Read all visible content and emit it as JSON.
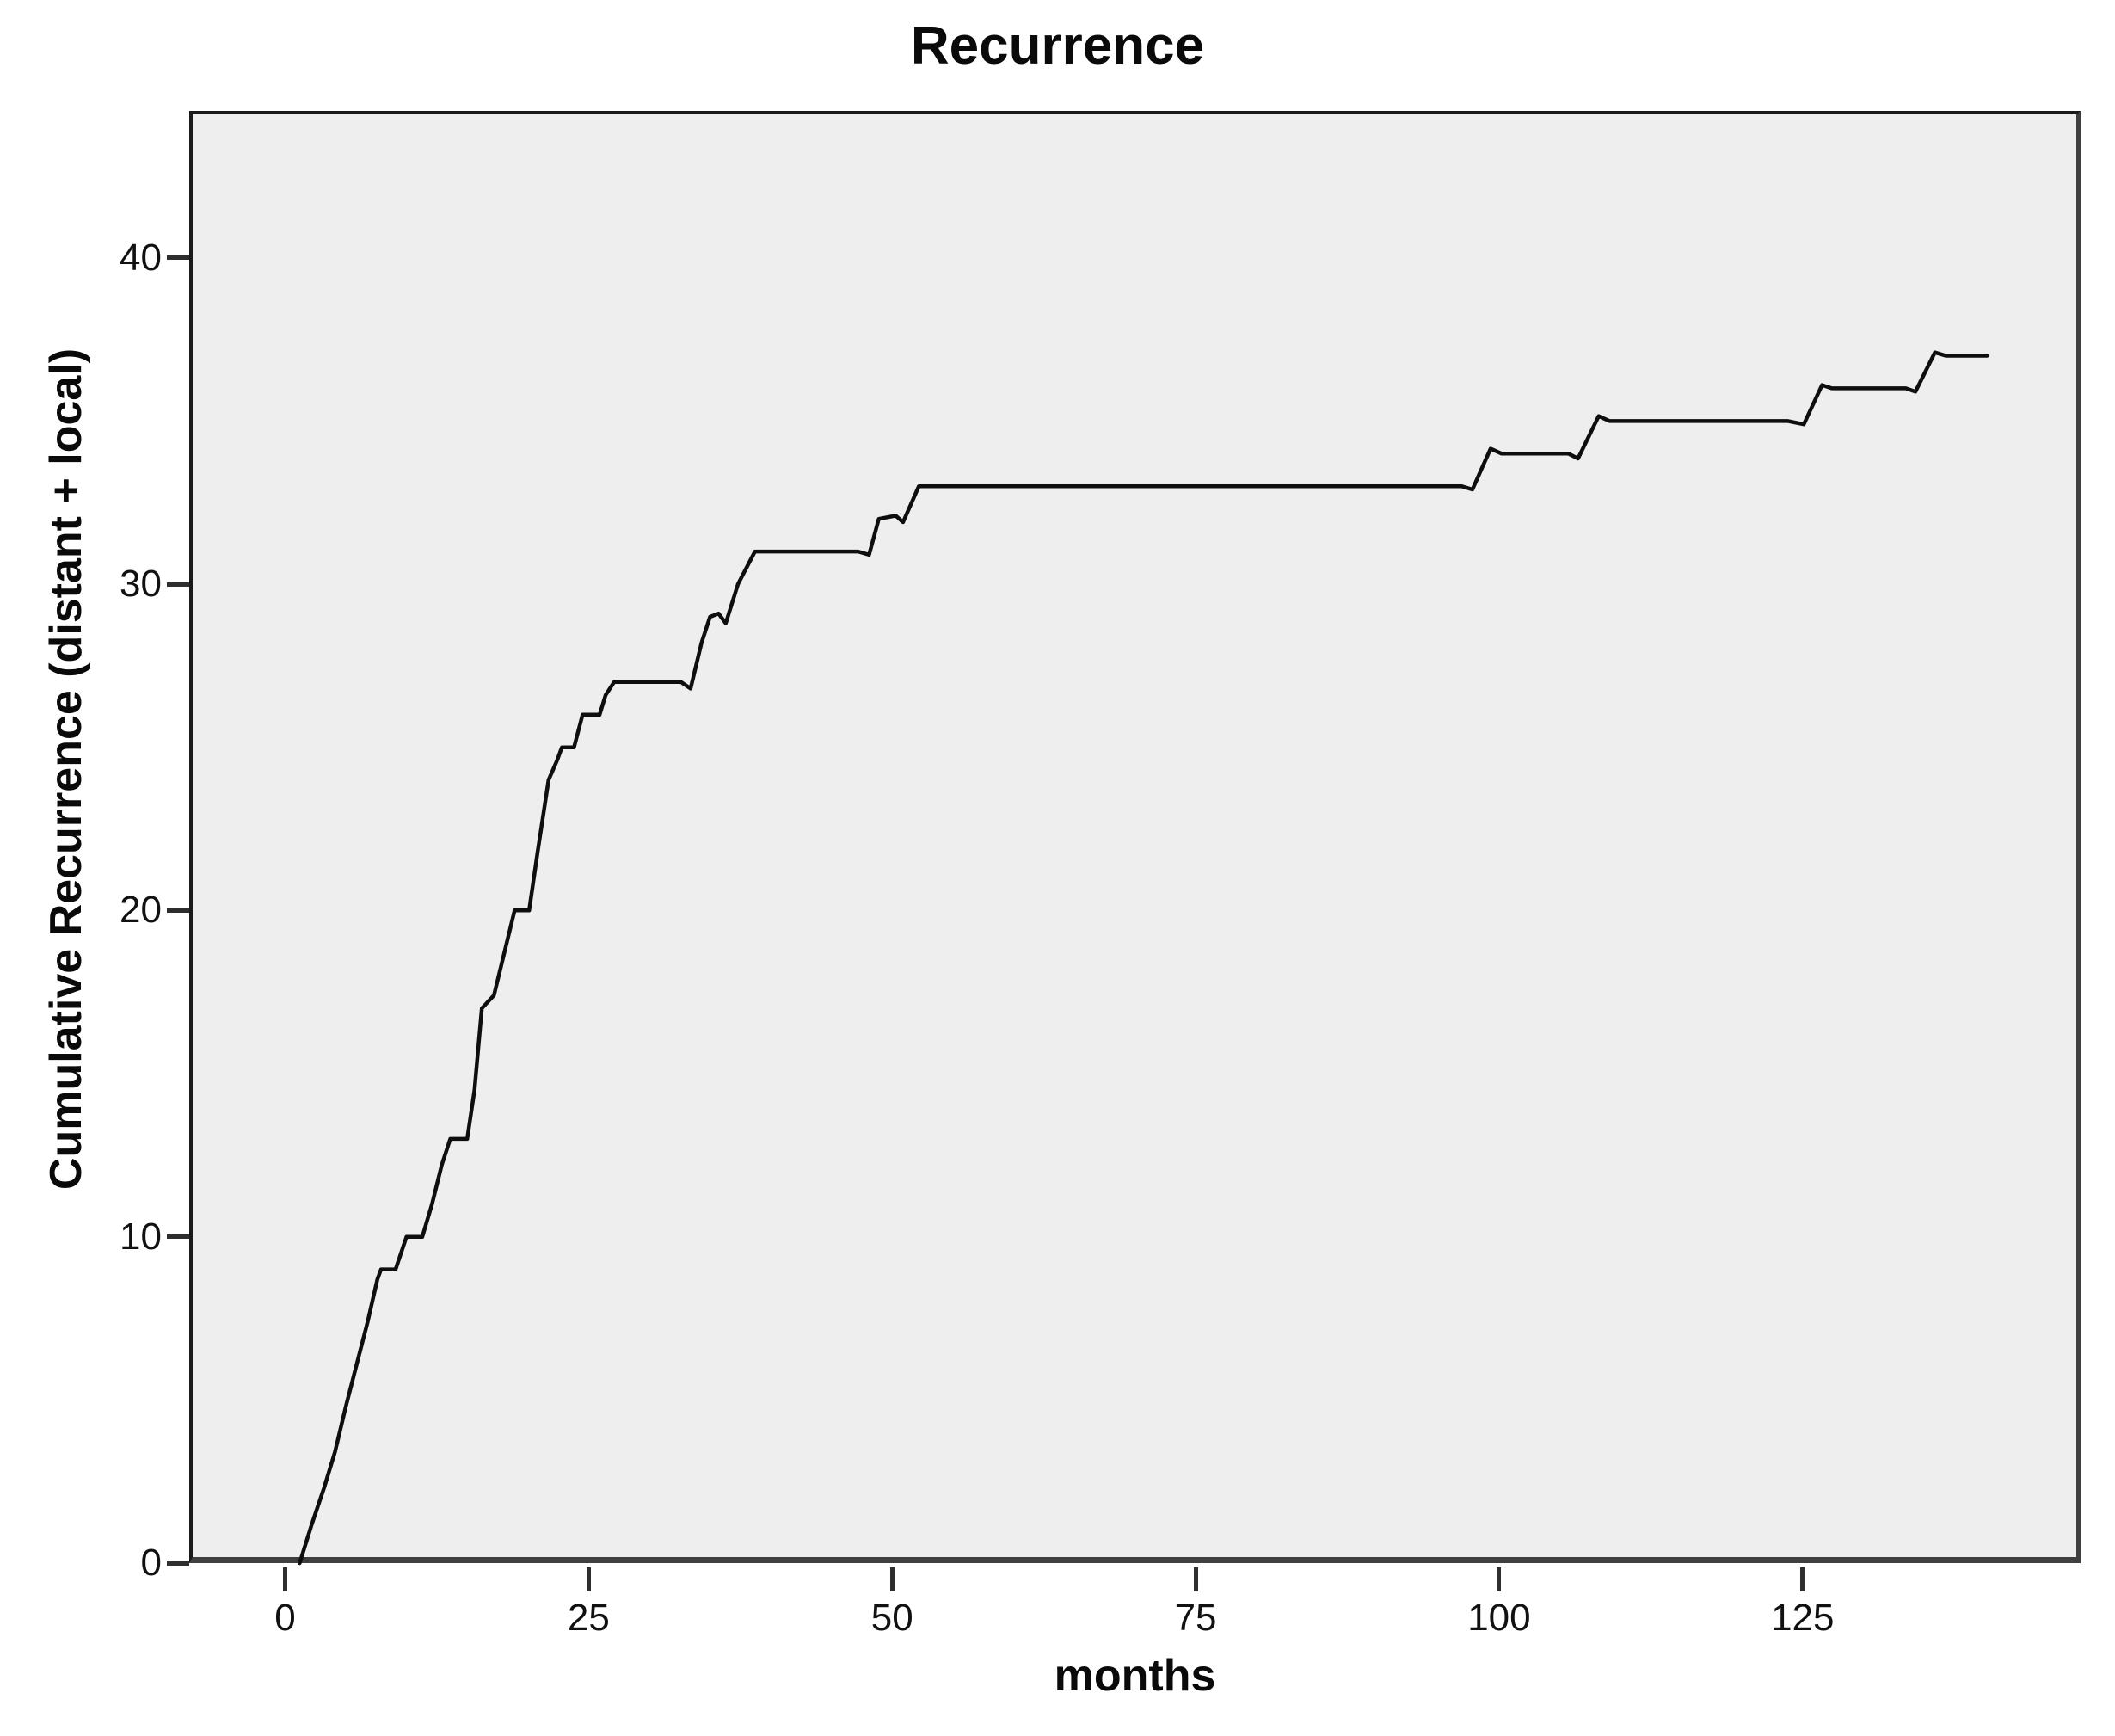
{
  "figure": {
    "background": "#ffffff",
    "title": "Recurrence"
  },
  "chart_data": {
    "type": "line",
    "subtype": "cumulative-incidence-step-curve",
    "title": "Recurrence",
    "xlabel": "months",
    "ylabel": "Cumulative Recurrence (distant + local)",
    "x_ticks": [
      0,
      25,
      50,
      75,
      100,
      125
    ],
    "y_ticks": [
      0,
      10,
      20,
      30,
      40
    ],
    "xlim": [
      -7.9,
      147.9
    ],
    "ylim": [
      0,
      44.5
    ],
    "grid": false,
    "legend": "none",
    "plot_background": "#eeeeee",
    "frame_color": "#1a1a1a",
    "axis_color": "#3f3f3f",
    "tick_color": "#2e2e2e",
    "line_color": "#0e0e0e",
    "line_width": 4.5,
    "series": [
      {
        "name": "Cumulative recurrence (distant + local)",
        "points": [
          [
            1.2,
            0
          ],
          [
            2.2,
            1.2
          ],
          [
            3.2,
            2.3
          ],
          [
            4.1,
            3.4
          ],
          [
            5.0,
            4.8
          ],
          [
            5.9,
            6.1
          ],
          [
            6.8,
            7.4
          ],
          [
            7.6,
            8.7
          ],
          [
            7.9,
            9.0
          ],
          [
            9.1,
            9.0
          ],
          [
            10.0,
            10.0
          ],
          [
            11.3,
            10.0
          ],
          [
            12.1,
            11.0
          ],
          [
            12.9,
            12.2
          ],
          [
            13.6,
            13.0
          ],
          [
            15.0,
            13.0
          ],
          [
            15.6,
            14.5
          ],
          [
            16.2,
            17.0
          ],
          [
            17.2,
            17.4
          ],
          [
            18.9,
            20.0
          ],
          [
            20.1,
            20.0
          ],
          [
            20.8,
            21.8
          ],
          [
            21.7,
            24.0
          ],
          [
            22.4,
            24.6
          ],
          [
            22.8,
            25.0
          ],
          [
            23.8,
            25.0
          ],
          [
            24.5,
            26.0
          ],
          [
            25.9,
            26.0
          ],
          [
            26.4,
            26.6
          ],
          [
            27.1,
            27.0
          ],
          [
            32.6,
            27.0
          ],
          [
            33.4,
            26.8
          ],
          [
            34.3,
            28.2
          ],
          [
            35.0,
            29.0
          ],
          [
            35.7,
            29.1
          ],
          [
            36.3,
            28.8
          ],
          [
            37.3,
            30.0
          ],
          [
            38.7,
            31.0
          ],
          [
            47.2,
            31.0
          ],
          [
            48.1,
            30.9
          ],
          [
            48.9,
            32.0
          ],
          [
            50.3,
            32.1
          ],
          [
            50.9,
            31.9
          ],
          [
            52.2,
            33.0
          ],
          [
            96.9,
            33.0
          ],
          [
            97.8,
            32.9
          ],
          [
            99.3,
            34.15
          ],
          [
            100.2,
            34.0
          ],
          [
            105.7,
            34.0
          ],
          [
            106.5,
            33.85
          ],
          [
            108.2,
            35.15
          ],
          [
            109.1,
            35.0
          ],
          [
            123.8,
            35.0
          ],
          [
            125.1,
            34.9
          ],
          [
            126.6,
            36.1
          ],
          [
            127.4,
            36.0
          ],
          [
            133.5,
            36.0
          ],
          [
            134.3,
            35.9
          ],
          [
            135.9,
            37.1
          ],
          [
            136.8,
            37.0
          ],
          [
            140.2,
            37.0
          ]
        ]
      }
    ]
  }
}
